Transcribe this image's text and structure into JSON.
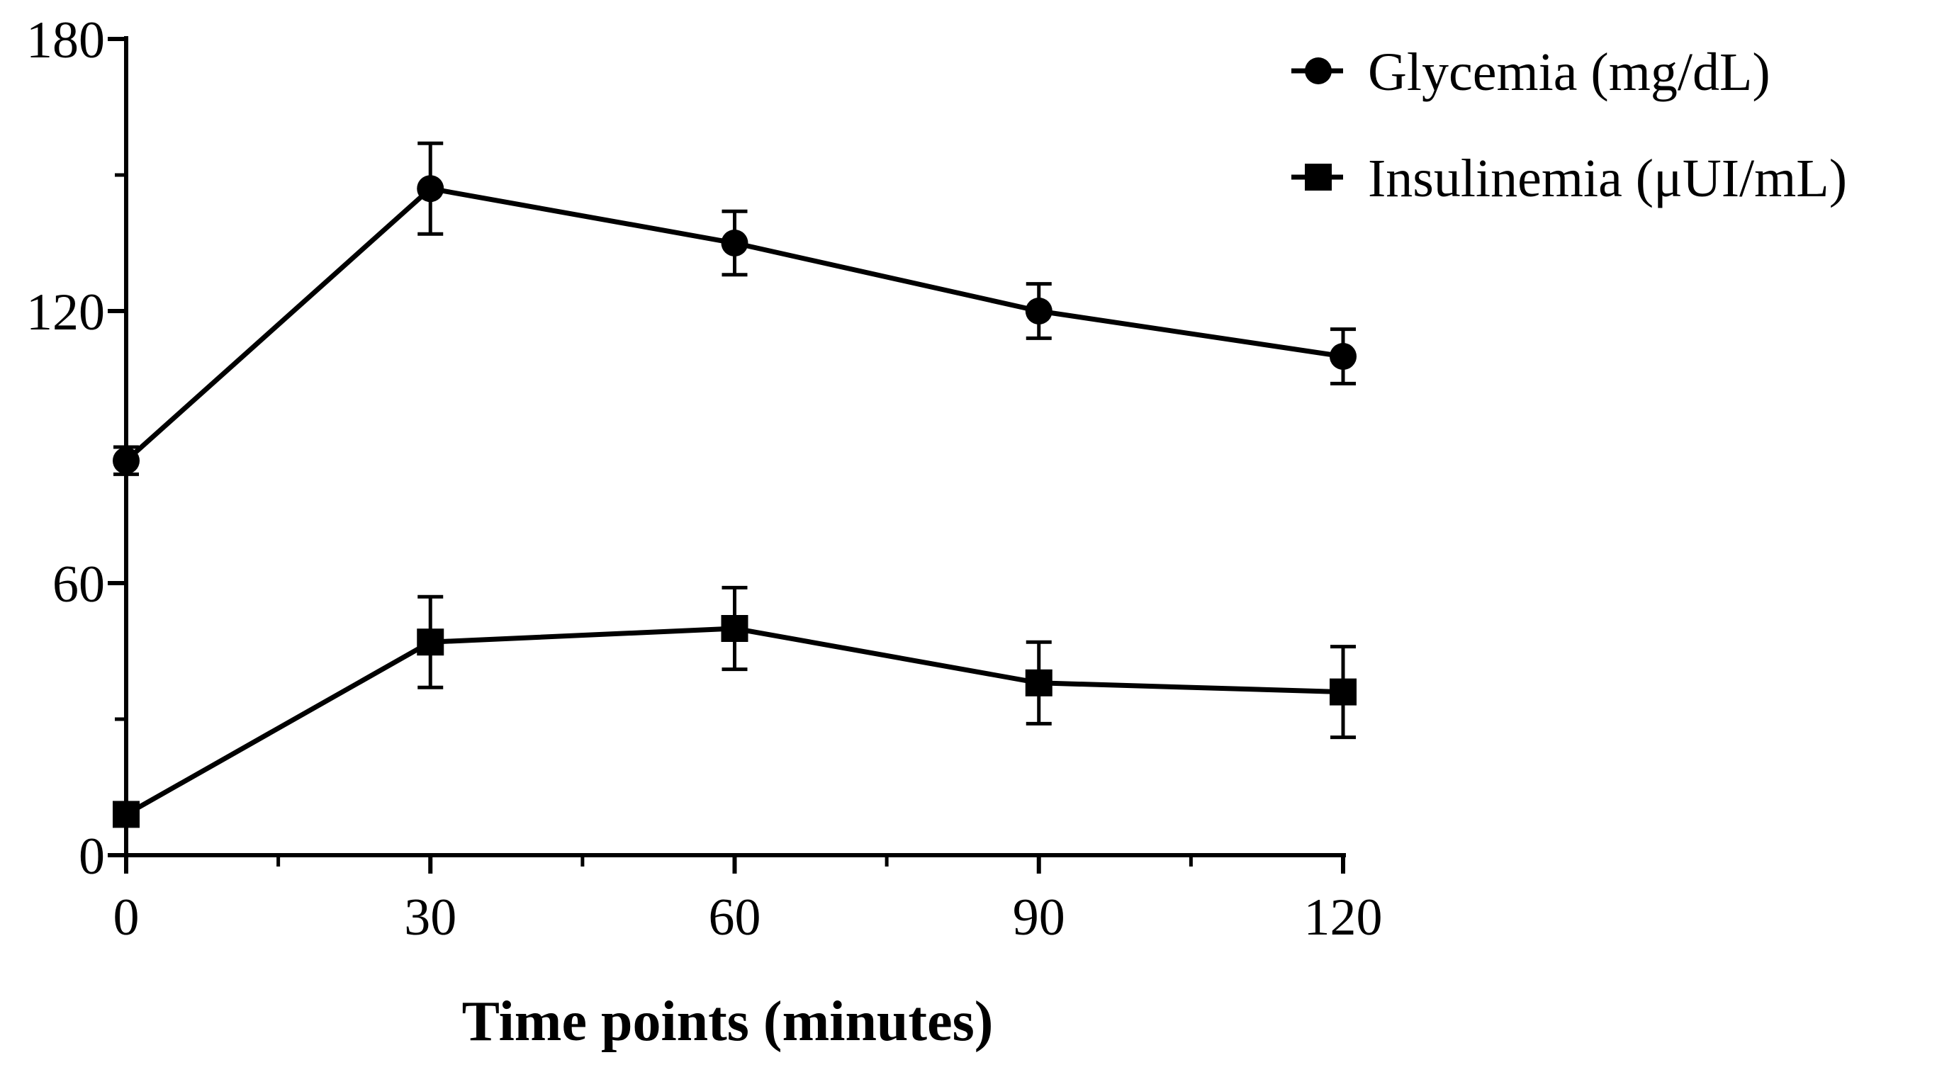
{
  "chart_data": {
    "type": "line",
    "xlabel": "Time points (minutes)",
    "ylabel": "",
    "x": [
      0,
      30,
      60,
      90,
      120
    ],
    "xlim": [
      0,
      120
    ],
    "ylim": [
      0,
      180
    ],
    "xticks": [
      0,
      30,
      60,
      90,
      120
    ],
    "xticks_minor": [
      15,
      45,
      75,
      105
    ],
    "yticks": [
      0,
      60,
      120,
      180
    ],
    "yticks_minor": [
      30,
      90,
      150
    ],
    "grid": false,
    "legend_position": "top-right",
    "series": [
      {
        "name": "Glycemia (mg/dL)",
        "marker": "circle",
        "color": "#000000",
        "values": [
          87,
          147,
          135,
          120,
          110
        ],
        "error": [
          3,
          10,
          7,
          6,
          6
        ]
      },
      {
        "name": "Insulinemia (μUI/mL)",
        "marker": "square",
        "color": "#000000",
        "values": [
          9,
          47,
          50,
          38,
          36
        ],
        "error": [
          1,
          10,
          9,
          9,
          10
        ]
      }
    ]
  }
}
